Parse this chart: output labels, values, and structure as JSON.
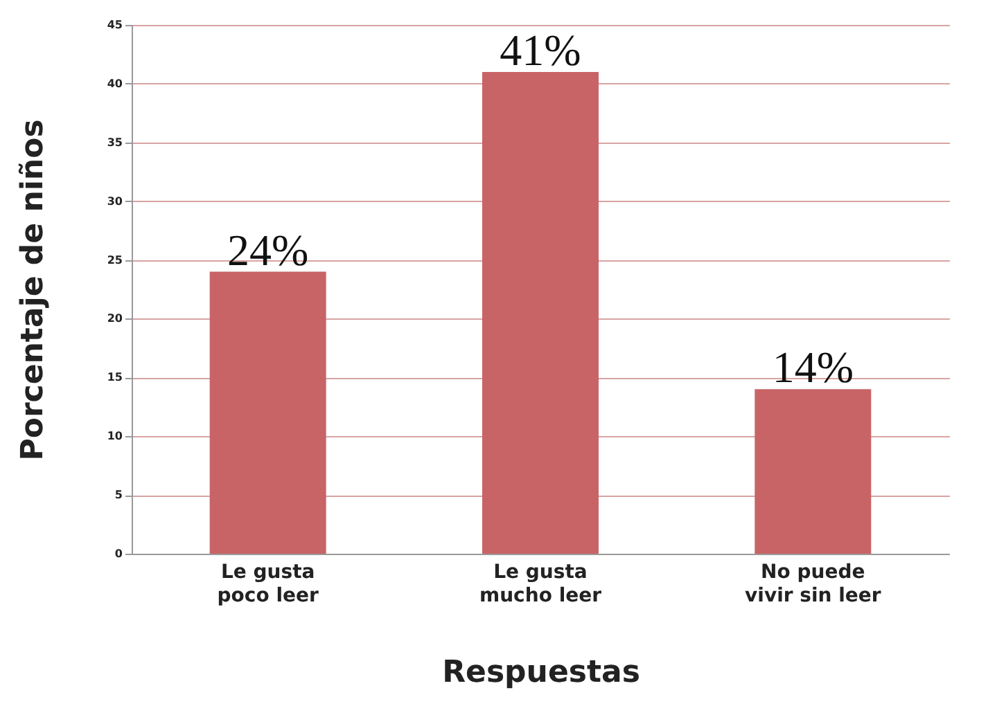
{
  "chart_data": {
    "type": "bar",
    "xlabel": "Respuestas",
    "ylabel": "Porcentaje de niños",
    "categories": [
      "Le gusta poco leer",
      "Le gusta mucho leer",
      "No puede vivir sin leer"
    ],
    "values": [
      24,
      41,
      14
    ],
    "value_labels": [
      "24%",
      "41%",
      "14%"
    ],
    "color": "#c86466",
    "ylim": [
      0,
      45
    ],
    "yticks": [
      0,
      5,
      10,
      15,
      20,
      25,
      30,
      35,
      40,
      45
    ],
    "grid": "y"
  }
}
